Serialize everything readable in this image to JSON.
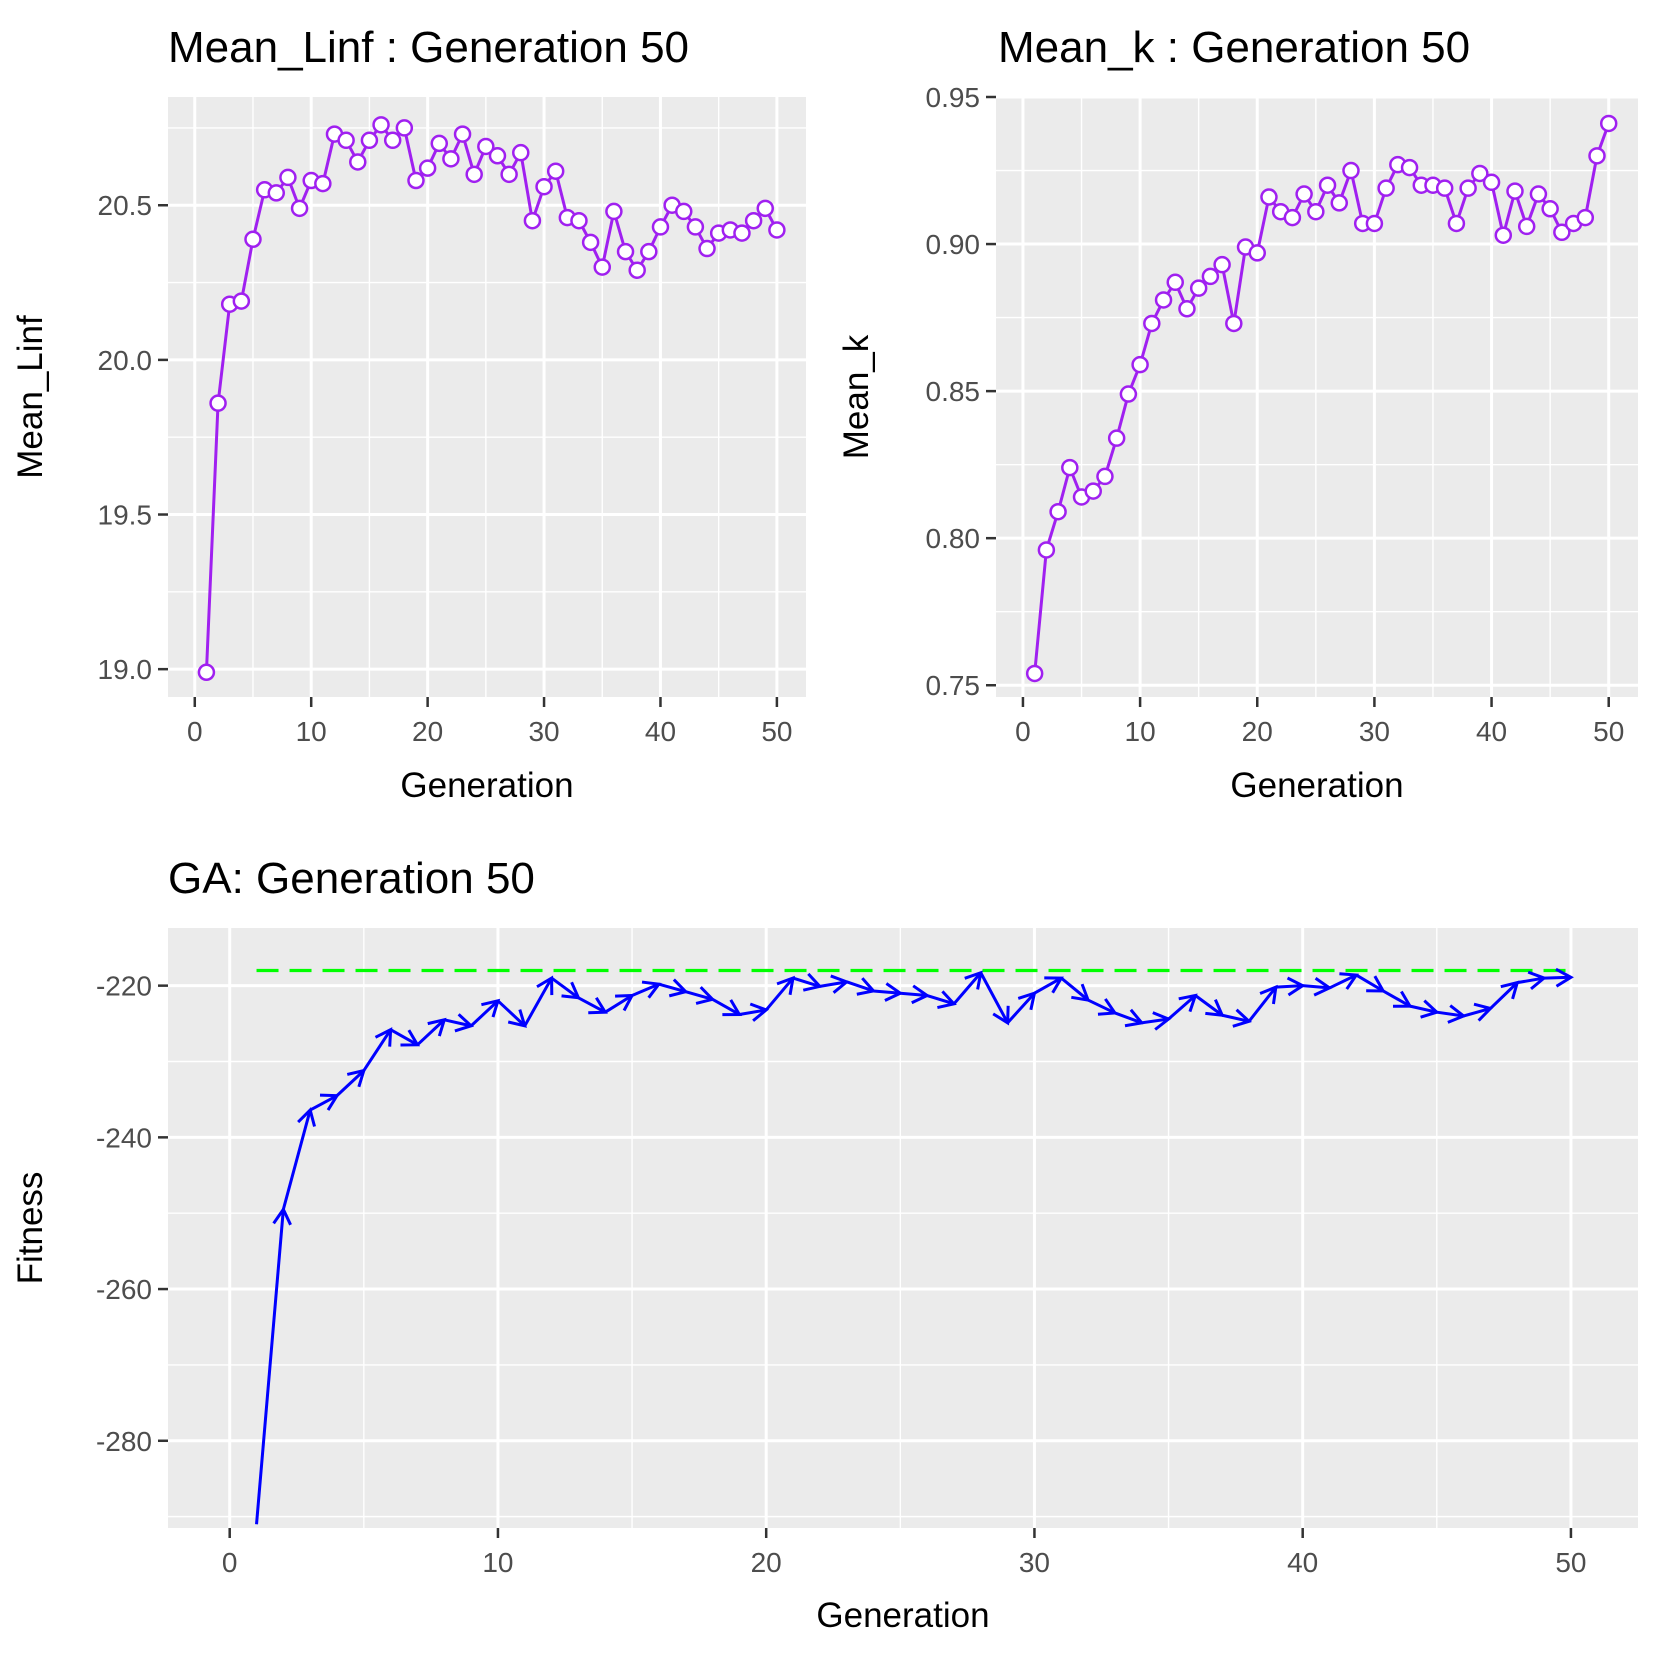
{
  "chart_data": [
    {
      "type": "line",
      "title": "Mean_Linf : Generation 50",
      "xlabel": "Generation",
      "ylabel": "Mean_Linf",
      "xlim": [
        -2.3,
        52.5
      ],
      "ylim": [
        18.91,
        20.85
      ],
      "xticks": [
        "0",
        "10",
        "20",
        "30",
        "40",
        "50"
      ],
      "yticks": [
        "19.0",
        "19.5",
        "20.0",
        "20.5"
      ],
      "grid": true,
      "line_color": "#a020f0",
      "marker": "open-circle",
      "series": [
        {
          "x": [
            1,
            2,
            3,
            4,
            5,
            6,
            7,
            8,
            9,
            10,
            11,
            12,
            13,
            14,
            15,
            16,
            17,
            18,
            19,
            20,
            21,
            22,
            23,
            24,
            25,
            26,
            27,
            28,
            29,
            30,
            31,
            32,
            33,
            34,
            35,
            36,
            37,
            38,
            39,
            40,
            41,
            42,
            43,
            44,
            45,
            46,
            47,
            48,
            49,
            50
          ],
          "values": [
            18.99,
            19.86,
            20.18,
            20.19,
            20.39,
            20.55,
            20.54,
            20.59,
            20.49,
            20.58,
            20.57,
            20.73,
            20.71,
            20.64,
            20.71,
            20.76,
            20.71,
            20.75,
            20.58,
            20.62,
            20.7,
            20.65,
            20.73,
            20.6,
            20.69,
            20.66,
            20.6,
            20.67,
            20.45,
            20.56,
            20.61,
            20.46,
            20.45,
            20.38,
            20.3,
            20.48,
            20.35,
            20.29,
            20.35,
            20.43,
            20.5,
            20.48,
            20.43,
            20.36,
            20.41,
            20.42,
            20.41,
            20.45,
            20.49,
            20.42
          ]
        }
      ]
    },
    {
      "type": "line",
      "title": "Mean_k : Generation 50",
      "xlabel": "Generation",
      "ylabel": "Mean_k",
      "xlim": [
        -2.3,
        52.5
      ],
      "ylim": [
        0.746,
        0.95
      ],
      "xticks": [
        "0",
        "10",
        "20",
        "30",
        "40",
        "50"
      ],
      "yticks": [
        "0.75",
        "0.80",
        "0.85",
        "0.90",
        "0.95"
      ],
      "grid": true,
      "line_color": "#a020f0",
      "marker": "open-circle",
      "series": [
        {
          "x": [
            1,
            2,
            3,
            4,
            5,
            6,
            7,
            8,
            9,
            10,
            11,
            12,
            13,
            14,
            15,
            16,
            17,
            18,
            19,
            20,
            21,
            22,
            23,
            24,
            25,
            26,
            27,
            28,
            29,
            30,
            31,
            32,
            33,
            34,
            35,
            36,
            37,
            38,
            39,
            40,
            41,
            42,
            43,
            44,
            45,
            46,
            47,
            48,
            49,
            50
          ],
          "values": [
            0.754,
            0.796,
            0.809,
            0.824,
            0.814,
            0.816,
            0.821,
            0.834,
            0.849,
            0.859,
            0.873,
            0.881,
            0.887,
            0.878,
            0.885,
            0.889,
            0.893,
            0.873,
            0.899,
            0.897,
            0.916,
            0.911,
            0.909,
            0.917,
            0.911,
            0.92,
            0.914,
            0.925,
            0.907,
            0.907,
            0.919,
            0.927,
            0.926,
            0.92,
            0.92,
            0.919,
            0.907,
            0.919,
            0.924,
            0.921,
            0.903,
            0.918,
            0.906,
            0.917,
            0.912,
            0.904,
            0.907,
            0.909,
            0.93,
            0.941
          ]
        }
      ]
    },
    {
      "type": "line",
      "title": "GA: Generation 50",
      "xlabel": "Generation",
      "ylabel": "Fitness",
      "xlim": [
        -2.3,
        52.5
      ],
      "ylim": [
        -291.5,
        -212.4
      ],
      "xticks": [
        "0",
        "10",
        "20",
        "30",
        "40",
        "50"
      ],
      "yticks": [
        "-280",
        "-260",
        "-240",
        "-220"
      ],
      "grid": true,
      "line_color": "#0000ff",
      "marker": "arrow",
      "reference_line": {
        "y": -218.0,
        "color": "#00ff00",
        "style": "dashed"
      },
      "series": [
        {
          "x": [
            1,
            2,
            3,
            4,
            5,
            6,
            7,
            8,
            9,
            10,
            11,
            12,
            13,
            14,
            15,
            16,
            17,
            18,
            19,
            20,
            21,
            22,
            23,
            24,
            25,
            26,
            27,
            28,
            29,
            30,
            31,
            32,
            33,
            34,
            35,
            36,
            37,
            38,
            39,
            40,
            41,
            42,
            43,
            44,
            45,
            46,
            47,
            48,
            49,
            50
          ],
          "values": [
            -291.0,
            -249.5,
            -236.4,
            -234.5,
            -231.2,
            -225.8,
            -227.8,
            -224.5,
            -225.3,
            -222.0,
            -225.3,
            -219.0,
            -221.6,
            -223.5,
            -221.3,
            -219.8,
            -220.8,
            -221.8,
            -223.8,
            -223.2,
            -219.0,
            -220.1,
            -219.5,
            -220.7,
            -221.0,
            -221.3,
            -222.4,
            -218.3,
            -224.9,
            -221.0,
            -219.0,
            -221.9,
            -223.6,
            -224.9,
            -224.4,
            -221.3,
            -223.9,
            -224.7,
            -220.2,
            -220.0,
            -220.3,
            -218.6,
            -220.7,
            -222.7,
            -223.5,
            -224.0,
            -223.0,
            -219.6,
            -219.0,
            -218.9
          ]
        }
      ]
    }
  ]
}
